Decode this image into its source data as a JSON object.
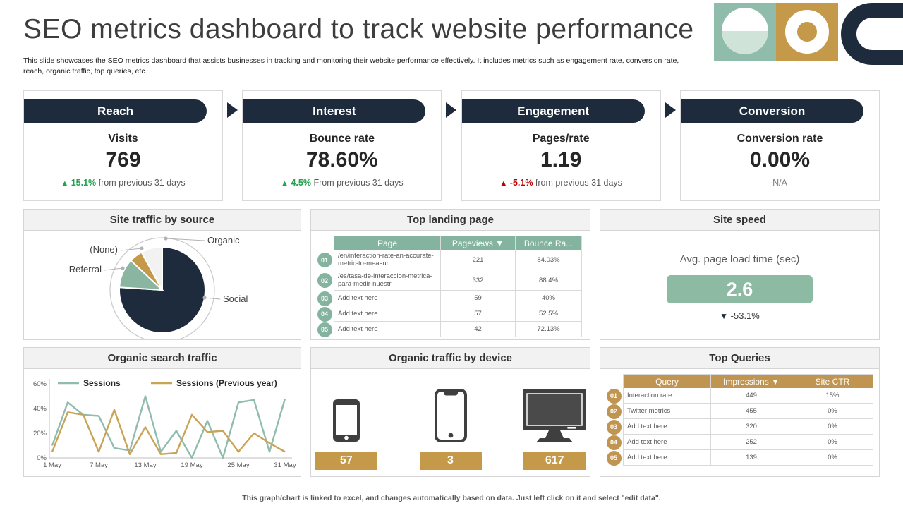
{
  "header": {
    "title": "SEO metrics dashboard to track website performance",
    "subtitle": "This slide showcases the SEO metrics dashboard that assists businesses in tracking and monitoring their website performance effectively. It includes metrics such as engagement rate, conversion rate, reach, organic traffic, top queries, etc."
  },
  "colors": {
    "navy": "#1d2b3c",
    "teal": "#84b49f",
    "teal_light": "#cfe3d8",
    "gold": "#bf9551",
    "green": "#21a34f",
    "red": "#c00000",
    "panel_border": "#d5d5d5",
    "panel_head_bg": "#f2f2f2",
    "speed_button": "#8cbaa3"
  },
  "funnel": {
    "stages": [
      {
        "name": "Reach",
        "metric": "Visits",
        "value": "769",
        "delta_color": "green",
        "delta_value": "15.1%",
        "delta_text": "from previous  31 days"
      },
      {
        "name": "Interest",
        "metric": "Bounce rate",
        "value": "78.60%",
        "delta_color": "green",
        "delta_value": "4.5%",
        "delta_text": "From previous 31 days"
      },
      {
        "name": "Engagement",
        "metric": "Pages/rate",
        "value": "1.19",
        "delta_color": "red",
        "delta_value": "-5.1%",
        "delta_text": "from previous  31 days"
      },
      {
        "name": "Conversion",
        "metric": "Conversion rate",
        "value": "0.00%",
        "delta_color": "none",
        "delta_value": "",
        "delta_text": "N/A"
      }
    ]
  },
  "panels": {
    "site_traffic": {
      "title": "Site traffic by source"
    },
    "top_landing": {
      "title": "Top landing page",
      "table": {
        "headers": [
          "Page",
          "Pageviews ▼",
          "Bounce Ra..."
        ],
        "rows": [
          [
            "01",
            "/en/interaction-rate-an-accurate-metric-to-measur....",
            "221",
            "84.03%"
          ],
          [
            "02",
            "/es/tasa-de-interaccion-metrica-para-medir-nuestr",
            "332",
            "88.4%"
          ],
          [
            "03",
            "Add text here",
            "59",
            "40%"
          ],
          [
            "04",
            "Add text here",
            "57",
            "52.5%"
          ],
          [
            "05",
            "Add text here",
            "42",
            "72.13%"
          ]
        ]
      }
    },
    "site_speed": {
      "title": "Site speed",
      "label": "Avg. page load time (sec)",
      "value": "2.6",
      "delta": "-53.1%"
    },
    "organic_search": {
      "title": "Organic search traffic"
    },
    "device": {
      "title": "Organic traffic by device",
      "icons": [
        "mobile-small-icon",
        "mobile-large-icon",
        "desktop-icon"
      ]
    },
    "top_queries": {
      "title": "Top Queries",
      "table": {
        "headers": [
          "Query",
          "Impressions ▼",
          "Site CTR"
        ],
        "rows": [
          [
            "01",
            "Interaction rate",
            "449",
            "15%"
          ],
          [
            "02",
            "Twitter  metrics",
            "455",
            "0%"
          ],
          [
            "03",
            "Add text here",
            "320",
            "0%"
          ],
          [
            "04",
            "Add text here",
            "252",
            "0%"
          ],
          [
            "05",
            "Add text here",
            "139",
            "0%"
          ]
        ]
      }
    }
  },
  "chart_data": [
    {
      "type": "pie",
      "title": "Site traffic by source",
      "labels": [
        "Social",
        "Referral",
        "(None)",
        "Organic"
      ],
      "values": [
        76,
        11,
        5,
        8
      ],
      "colors": [
        "#1d2b3c",
        "#8ab5a1",
        "#c49a4a",
        "#f2f2f2"
      ],
      "start_angle": "12 o'clock",
      "direction": "clockwise",
      "legend_position": "callout-labels"
    },
    {
      "type": "line",
      "title": "Organic search traffic",
      "x_days": [
        1,
        3,
        5,
        7,
        9,
        11,
        13,
        15,
        17,
        19,
        21,
        23,
        25,
        27,
        29,
        31
      ],
      "x_tick_days": [
        1,
        7,
        13,
        19,
        25,
        31
      ],
      "x_tick_labels": [
        "1 May",
        "7 May",
        "13 May",
        "19 May",
        "25 May",
        "31 May"
      ],
      "y_ticks": [
        "0%",
        "20%",
        "40%",
        "60%"
      ],
      "ylim": [
        0,
        60
      ],
      "grid": false,
      "legend_position": "top-inside",
      "series": [
        {
          "name": "Sessions",
          "color": "#8fbcac",
          "values": [
            10,
            45,
            35,
            34,
            8,
            6,
            50,
            5,
            22,
            0,
            30,
            0,
            45,
            47,
            5,
            48
          ]
        },
        {
          "name": "Sessions (Previous year)",
          "color": "#c9a457",
          "values": [
            5,
            37,
            35,
            5,
            39,
            3,
            25,
            3,
            4,
            35,
            21,
            22,
            5,
            20,
            12,
            5
          ]
        }
      ]
    },
    {
      "type": "bar",
      "title": "Organic traffic by device",
      "categories": [
        "Mobile (small)",
        "Mobile (large)",
        "Desktop"
      ],
      "values": [
        57,
        3,
        617
      ]
    }
  ],
  "footer": {
    "note": "This graph/chart is linked to excel,  and changes automatically based on data. Just left click on it and select \"edit data\"."
  }
}
